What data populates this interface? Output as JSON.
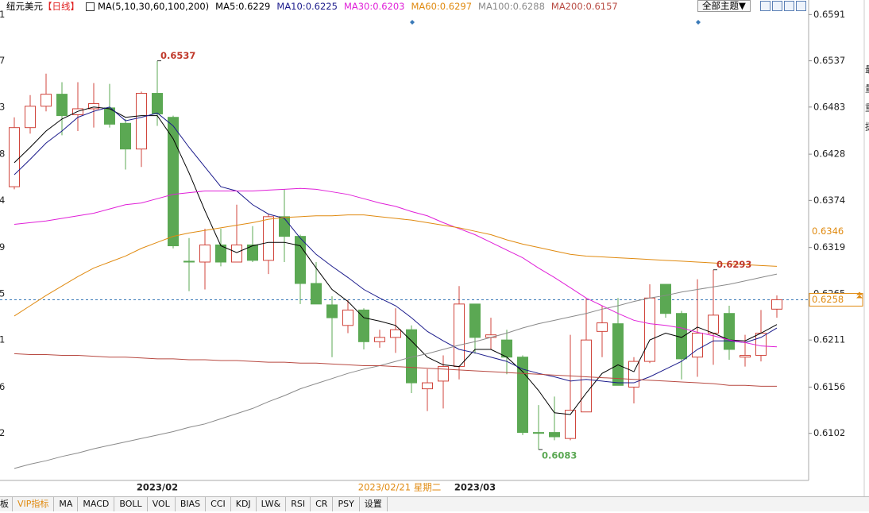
{
  "header": {
    "symbol": "纽元美元",
    "period": "【日线】",
    "indicator": "MA(5,10,30,60,100,200)",
    "theme_button": "全部主题▼"
  },
  "chart_data": {
    "type": "candlestick",
    "categories": [
      null,
      null,
      null,
      null,
      null,
      null,
      null,
      null,
      null,
      "2023/02",
      null,
      null,
      null,
      null,
      null,
      null,
      null,
      null,
      null,
      null,
      null,
      null,
      null,
      null,
      null,
      null,
      null,
      null,
      null,
      "2023/03",
      null,
      null,
      null,
      null,
      null,
      null,
      null,
      null,
      null,
      null,
      null,
      null,
      null,
      null,
      null,
      null,
      null,
      null,
      null
    ],
    "cursor_label": "2023/02/21 星期二",
    "open": [
      0.639,
      0.6459,
      0.6484,
      0.6498,
      0.6474,
      0.6481,
      0.6482,
      0.6464,
      0.6434,
      0.6499,
      0.6471,
      0.6303,
      0.6302,
      0.6322,
      0.6302,
      0.6322,
      0.6304,
      0.6355,
      0.6332,
      0.6277,
      0.6252,
      0.6228,
      0.6246,
      0.6209,
      0.6214,
      0.6223,
      0.6154,
      0.6163,
      0.618,
      0.6253,
      0.6214,
      0.6211,
      0.6191,
      0.6103,
      0.6103,
      0.6096,
      0.6127,
      0.6221,
      0.623,
      0.6156,
      0.6186,
      0.6276,
      0.6242,
      0.6191,
      0.6219,
      0.6242,
      0.6191,
      0.6193,
      0.6247
    ],
    "high": [
      0.6471,
      0.6497,
      0.6522,
      0.6512,
      0.6512,
      0.6511,
      0.651,
      0.6469,
      0.6501,
      0.6537,
      0.6473,
      0.633,
      0.6341,
      0.6341,
      0.6369,
      0.6344,
      0.6358,
      0.6387,
      0.6334,
      0.6302,
      0.6262,
      0.6258,
      0.6248,
      0.6223,
      0.6248,
      0.6228,
      0.6177,
      0.6193,
      0.6274,
      0.6253,
      0.6237,
      0.6223,
      0.6193,
      0.6135,
      0.6145,
      0.6217,
      0.626,
      0.6251,
      0.626,
      0.6191,
      0.6276,
      0.6276,
      0.6245,
      0.6282,
      0.6293,
      0.6251,
      0.6217,
      0.6246,
      0.6263
    ],
    "low": [
      0.6387,
      0.6452,
      0.6478,
      0.645,
      0.6455,
      0.6459,
      0.6459,
      0.641,
      0.6413,
      0.6461,
      0.6318,
      0.6268,
      0.627,
      0.6297,
      0.6302,
      0.6302,
      0.6288,
      0.6302,
      0.6253,
      0.6253,
      0.6191,
      0.6219,
      0.62,
      0.6202,
      0.6196,
      0.6149,
      0.6128,
      0.6131,
      0.6165,
      0.6195,
      0.62,
      0.6171,
      0.61,
      0.6083,
      0.6094,
      0.6094,
      0.6127,
      0.6191,
      0.6158,
      0.6137,
      0.6184,
      0.6237,
      0.6165,
      0.6168,
      0.6182,
      0.6188,
      0.618,
      0.6186,
      0.6237
    ],
    "close": [
      0.6459,
      0.6484,
      0.6498,
      0.6473,
      0.6481,
      0.6487,
      0.6463,
      0.6434,
      0.6499,
      0.6475,
      0.6321,
      0.6302,
      0.6322,
      0.6302,
      0.6322,
      0.6304,
      0.6355,
      0.6332,
      0.6277,
      0.6253,
      0.6237,
      0.6246,
      0.6209,
      0.6214,
      0.6223,
      0.6161,
      0.6161,
      0.618,
      0.6253,
      0.6214,
      0.6217,
      0.6191,
      0.6103,
      0.6102,
      0.6098,
      0.6129,
      0.6211,
      0.6231,
      0.6158,
      0.6186,
      0.626,
      0.6242,
      0.6189,
      0.6219,
      0.624,
      0.62,
      0.6193,
      0.6219,
      0.6258
    ],
    "up_color": "#d0453c",
    "down_color": "#5ba853",
    "annotation_up_color": "#c0392b",
    "series": [
      {
        "name": "MA5:0.6229",
        "color": "#000000",
        "values": [
          0.6418,
          0.6436,
          0.6455,
          0.6469,
          0.6478,
          0.6483,
          0.6481,
          0.6471,
          0.6473,
          0.6473,
          0.6446,
          0.6406,
          0.6362,
          0.6321,
          0.6313,
          0.6321,
          0.6325,
          0.6325,
          0.6321,
          0.6295,
          0.627,
          0.6256,
          0.6237,
          0.6233,
          0.6228,
          0.621,
          0.6191,
          0.6182,
          0.618,
          0.62,
          0.62,
          0.6191,
          0.6174,
          0.6152,
          0.6126,
          0.6124,
          0.6149,
          0.6172,
          0.6182,
          0.6174,
          0.6211,
          0.6219,
          0.6214,
          0.6226,
          0.6219,
          0.6211,
          0.621,
          0.6219,
          0.6229
        ]
      },
      {
        "name": "MA10:0.6225",
        "color": "#1c1c8c",
        "values": [
          0.6404,
          0.6422,
          0.6441,
          0.6455,
          0.6471,
          0.6478,
          0.6483,
          0.6467,
          0.6471,
          0.6476,
          0.6461,
          0.6436,
          0.6413,
          0.639,
          0.6385,
          0.6369,
          0.6358,
          0.6353,
          0.633,
          0.6311,
          0.6297,
          0.6284,
          0.627,
          0.626,
          0.6251,
          0.6237,
          0.6221,
          0.621,
          0.62,
          0.6196,
          0.6191,
          0.6186,
          0.6177,
          0.6172,
          0.6168,
          0.6163,
          0.6165,
          0.6163,
          0.6161,
          0.6161,
          0.6168,
          0.6177,
          0.6186,
          0.62,
          0.621,
          0.621,
          0.6208,
          0.6214,
          0.6225
        ]
      },
      {
        "name": "MA30:0.6203",
        "color": "#e020d8",
        "values": [
          0.6346,
          0.6348,
          0.635,
          0.6353,
          0.6356,
          0.6359,
          0.6364,
          0.6369,
          0.6371,
          0.6376,
          0.6381,
          0.6383,
          0.6385,
          0.6385,
          0.6385,
          0.6385,
          0.6386,
          0.6387,
          0.6388,
          0.6387,
          0.6384,
          0.6381,
          0.6376,
          0.6371,
          0.6367,
          0.6361,
          0.6356,
          0.6348,
          0.6341,
          0.6334,
          0.6325,
          0.6316,
          0.6307,
          0.6295,
          0.6284,
          0.6272,
          0.626,
          0.6251,
          0.6242,
          0.6234,
          0.623,
          0.6228,
          0.6225,
          0.622,
          0.6216,
          0.6211,
          0.6208,
          0.6204,
          0.6203
        ]
      },
      {
        "name": "MA60:0.6297",
        "color": "#e08a10",
        "values": [
          0.6239,
          0.6251,
          0.6263,
          0.6274,
          0.6285,
          0.6295,
          0.6302,
          0.6309,
          0.6318,
          0.6325,
          0.6332,
          0.6336,
          0.6339,
          0.6342,
          0.6345,
          0.6348,
          0.6352,
          0.6354,
          0.6355,
          0.6356,
          0.6356,
          0.6357,
          0.6357,
          0.6355,
          0.6353,
          0.6351,
          0.6348,
          0.6345,
          0.6342,
          0.6338,
          0.6334,
          0.6328,
          0.6323,
          0.6319,
          0.6315,
          0.6311,
          0.6309,
          0.6308,
          0.6307,
          0.6306,
          0.6305,
          0.6304,
          0.6303,
          0.6302,
          0.6301,
          0.63,
          0.6299,
          0.6298,
          0.6297
        ]
      },
      {
        "name": "MA100:0.6288",
        "color": "#8a8a8a",
        "values": [
          0.6061,
          0.6066,
          0.607,
          0.6075,
          0.6079,
          0.6084,
          0.6088,
          0.6092,
          0.6096,
          0.61,
          0.6104,
          0.6109,
          0.6113,
          0.6119,
          0.6125,
          0.6131,
          0.6139,
          0.6146,
          0.6154,
          0.616,
          0.6166,
          0.6172,
          0.6177,
          0.6181,
          0.6186,
          0.6191,
          0.6195,
          0.62,
          0.6205,
          0.6209,
          0.6214,
          0.6219,
          0.6225,
          0.623,
          0.6234,
          0.6238,
          0.6242,
          0.6247,
          0.6251,
          0.6256,
          0.626,
          0.6263,
          0.6267,
          0.627,
          0.6273,
          0.6276,
          0.628,
          0.6284,
          0.6288
        ]
      },
      {
        "name": "MA200:0.6157",
        "color": "#b84a42",
        "values": [
          0.6195,
          0.6194,
          0.6194,
          0.6193,
          0.6193,
          0.6192,
          0.6191,
          0.6191,
          0.619,
          0.6189,
          0.6189,
          0.6188,
          0.6188,
          0.6187,
          0.6187,
          0.6186,
          0.6185,
          0.6185,
          0.6184,
          0.6184,
          0.6183,
          0.6182,
          0.6181,
          0.6181,
          0.618,
          0.6179,
          0.6178,
          0.6177,
          0.6176,
          0.6175,
          0.6174,
          0.6173,
          0.6172,
          0.6171,
          0.617,
          0.6169,
          0.6168,
          0.6167,
          0.6166,
          0.6165,
          0.6164,
          0.6163,
          0.6162,
          0.6161,
          0.616,
          0.6158,
          0.6158,
          0.6157,
          0.6157
        ]
      }
    ],
    "ylim": [
      0.6047,
      0.6608
    ],
    "yticks": [
      0.6591,
      0.6537,
      0.6483,
      0.6428,
      0.6374,
      0.6319,
      0.6265,
      0.6211,
      0.6156,
      0.6102
    ],
    "left_axis_fragments": [
      "1",
      "7",
      "3",
      "8",
      "4",
      "9",
      "5",
      "1",
      "6",
      "2"
    ],
    "last_price": 0.6258,
    "last_price_color": "#e08a10",
    "marker_value": 0.6346,
    "marker_color": "#e08a10",
    "grid": false
  },
  "side_fragments": [
    "最",
    "量",
    "重",
    "提"
  ],
  "tabs": [
    "板",
    "VIP指标",
    "MA",
    "MACD",
    "BOLL",
    "VOL",
    "BIAS",
    "CCI",
    "KDJ",
    "LW&",
    "RSI",
    "CR",
    "PSY",
    "设置"
  ]
}
